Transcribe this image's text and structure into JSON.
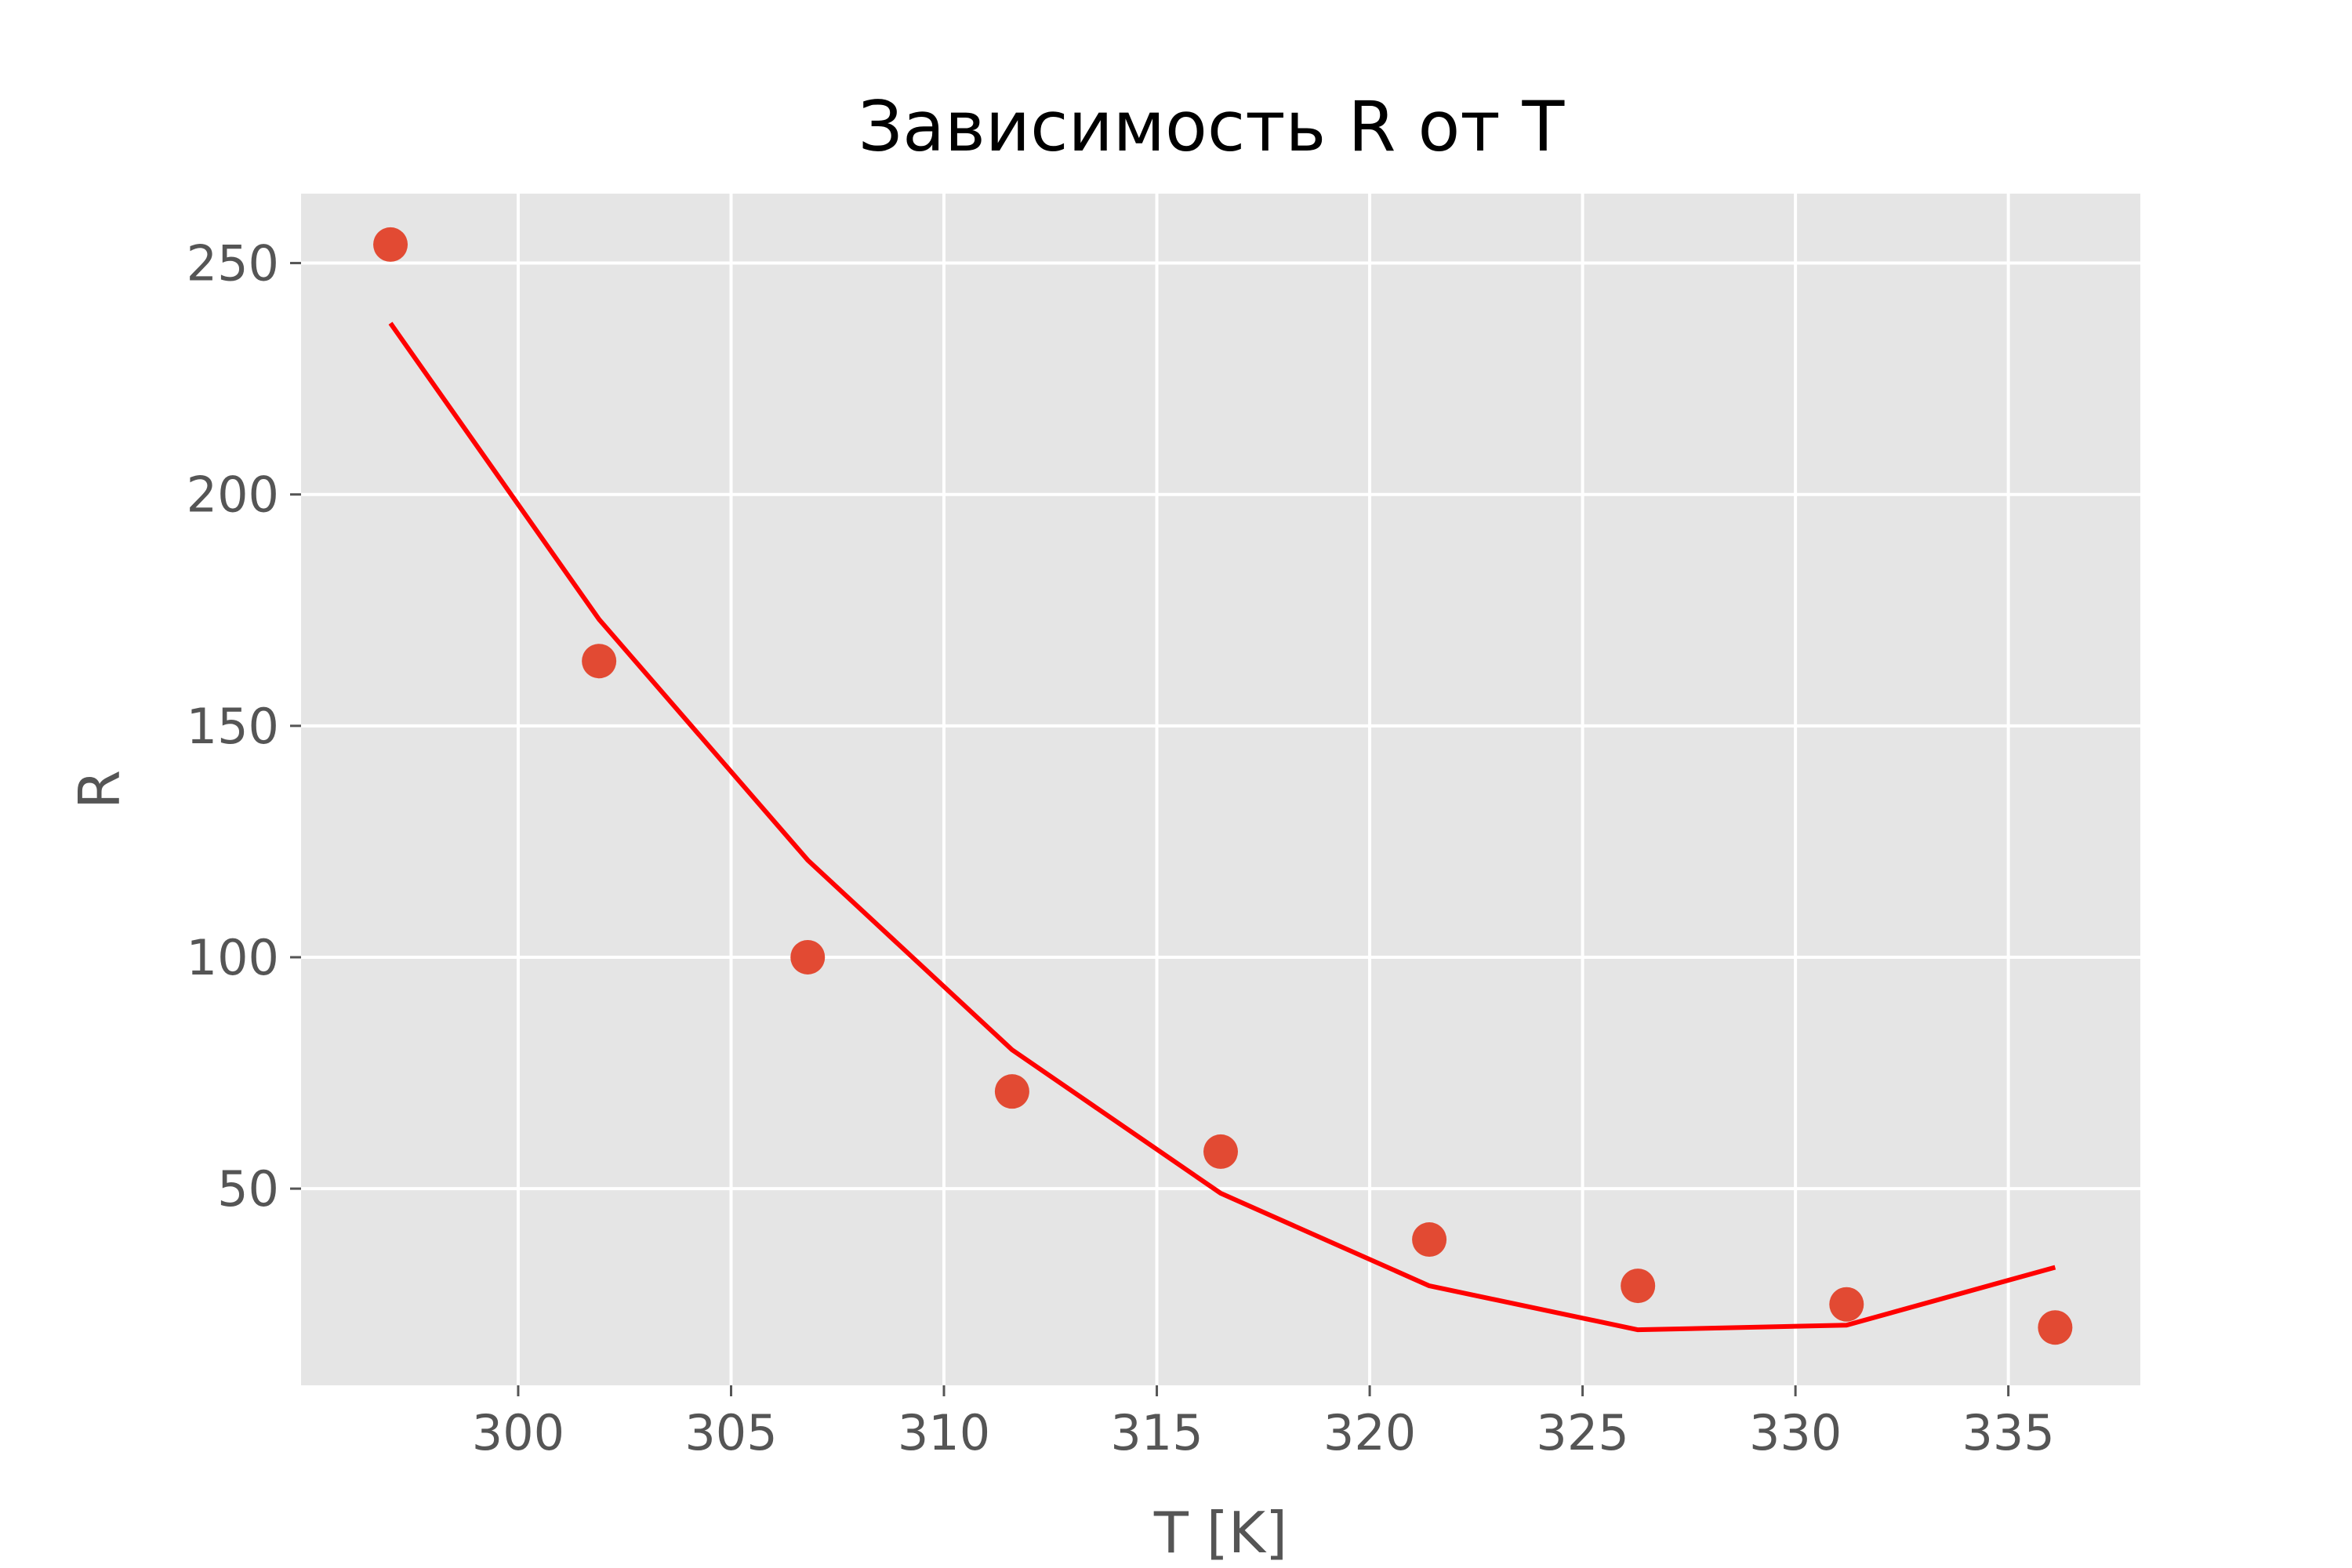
{
  "chart_data": {
    "type": "scatter",
    "title": "Зависимость R от T",
    "xlabel": "T [K]",
    "ylabel": "R",
    "xlim": [
      294.9,
      338.1
    ],
    "ylim": [
      7.5,
      265
    ],
    "xticks": [
      300,
      305,
      310,
      315,
      320,
      325,
      330,
      335
    ],
    "yticks": [
      50,
      100,
      150,
      200,
      250
    ],
    "grid": true,
    "background_color": "#e5e5e5",
    "series": [
      {
        "kind": "scatter",
        "color": "#e24a33",
        "x": [
          297.0,
          301.9,
          306.8,
          311.6,
          316.5,
          321.4,
          326.3,
          331.2,
          336.1
        ],
        "y": [
          254,
          164,
          100,
          71,
          58,
          39,
          29,
          25,
          20
        ]
      },
      {
        "kind": "line",
        "color": "#ff0000",
        "x": [
          297.0,
          301.9,
          306.8,
          311.6,
          316.5,
          321.4,
          326.3,
          331.2,
          336.1
        ],
        "y": [
          237,
          173,
          121,
          80,
          49,
          29,
          19.5,
          20.5,
          33
        ]
      }
    ]
  }
}
